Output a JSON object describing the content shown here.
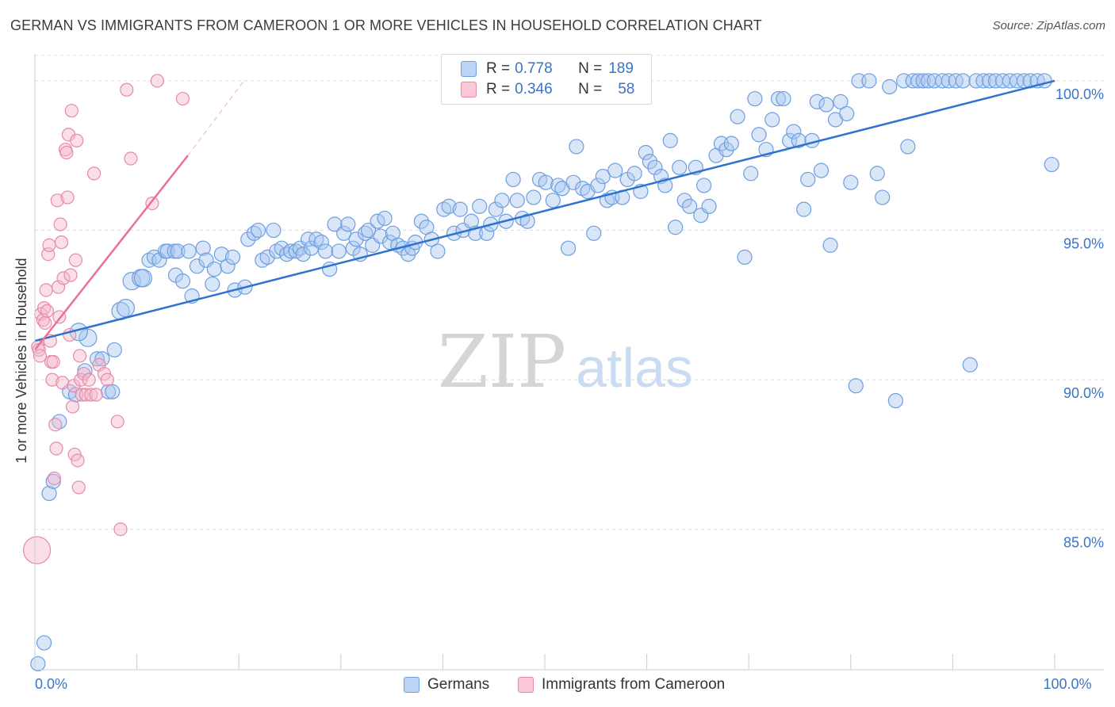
{
  "header": {
    "title": "GERMAN VS IMMIGRANTS FROM CAMEROON 1 OR MORE VEHICLES IN HOUSEHOLD CORRELATION CHART",
    "source": "Source: ZipAtlas.com"
  },
  "watermark": {
    "zip": "ZIP",
    "atlas": "atlas"
  },
  "legend": {
    "rows": [
      {
        "r_label": "R =",
        "r_value": "0.778",
        "n_label": "N =",
        "n_value": "189",
        "color": "#a9c8f0",
        "stroke": "#6e9ee0"
      },
      {
        "r_label": "R =",
        "r_value": "0.346",
        "n_label": "N =",
        "n_value": "58",
        "color": "#f7b9cc",
        "stroke": "#e58aa8"
      }
    ]
  },
  "bottom_legend": {
    "items": [
      {
        "label": "Germans",
        "color": "#a9c8f0",
        "stroke": "#6e9ee0"
      },
      {
        "label": "Immigrants from Cameroon",
        "color": "#f7b9cc",
        "stroke": "#e58aa8"
      }
    ]
  },
  "chart_data": {
    "type": "scatter",
    "title": "GERMAN VS IMMIGRANTS FROM CAMEROON 1 OR MORE VEHICLES IN HOUSEHOLD CORRELATION CHART",
    "xlabel": "",
    "ylabel": "1 or more Vehicles in Household",
    "xlim": [
      0,
      100
    ],
    "ylim": [
      80.3,
      100.9
    ],
    "x_tick_labels": [
      {
        "value": 0,
        "label": "0.0%"
      },
      {
        "value": 100,
        "label": "100.0%"
      }
    ],
    "y_tick_labels": [
      {
        "value": 85,
        "label": "85.0%"
      },
      {
        "value": 90,
        "label": "90.0%"
      },
      {
        "value": 95,
        "label": "95.0%"
      },
      {
        "value": 100,
        "label": "100.0%"
      }
    ],
    "grid": true,
    "legend_position": "top-center",
    "series": [
      {
        "name": "Germans",
        "color": "#6e9ee0",
        "fill": "#a9c8f0",
        "trend_color": "#2f72cf",
        "trendline": [
          [
            0,
            91.3
          ],
          [
            100,
            100.0
          ]
        ],
        "points": [
          [
            0.3,
            80.5
          ],
          [
            0.9,
            81.2
          ],
          [
            1.4,
            86.2
          ],
          [
            1.8,
            86.6
          ],
          [
            2.4,
            88.6
          ],
          [
            3.4,
            89.6
          ],
          [
            4.0,
            89.5
          ],
          [
            4.9,
            90.3
          ],
          [
            6.1,
            90.7
          ],
          [
            6.6,
            90.7
          ],
          [
            7.2,
            89.6
          ],
          [
            7.6,
            89.6
          ],
          [
            7.8,
            91.0
          ],
          [
            5.2,
            91.4
          ],
          [
            4.3,
            91.6
          ],
          [
            8.4,
            92.3
          ],
          [
            8.9,
            92.4
          ],
          [
            9.5,
            93.3
          ],
          [
            10.4,
            93.4
          ],
          [
            10.6,
            93.4
          ],
          [
            11.2,
            94.0
          ],
          [
            11.7,
            94.1
          ],
          [
            12.2,
            94.0
          ],
          [
            12.8,
            94.3
          ],
          [
            13.0,
            94.3
          ],
          [
            13.7,
            94.3
          ],
          [
            14.0,
            94.3
          ],
          [
            13.8,
            93.5
          ],
          [
            14.5,
            93.3
          ],
          [
            15.1,
            94.3
          ],
          [
            15.4,
            92.8
          ],
          [
            15.9,
            93.8
          ],
          [
            16.5,
            94.4
          ],
          [
            16.8,
            94.0
          ],
          [
            17.4,
            93.2
          ],
          [
            17.6,
            93.7
          ],
          [
            18.3,
            94.2
          ],
          [
            18.9,
            93.8
          ],
          [
            19.4,
            94.1
          ],
          [
            19.6,
            93.0
          ],
          [
            20.6,
            93.1
          ],
          [
            20.9,
            94.7
          ],
          [
            21.5,
            94.9
          ],
          [
            21.9,
            95.0
          ],
          [
            22.3,
            94.0
          ],
          [
            22.8,
            94.1
          ],
          [
            23.4,
            95.0
          ],
          [
            23.7,
            94.3
          ],
          [
            24.2,
            94.4
          ],
          [
            24.7,
            94.2
          ],
          [
            25.1,
            94.3
          ],
          [
            25.6,
            94.3
          ],
          [
            26.0,
            94.4
          ],
          [
            26.3,
            94.2
          ],
          [
            26.8,
            94.7
          ],
          [
            27.1,
            94.4
          ],
          [
            27.6,
            94.7
          ],
          [
            28.1,
            94.6
          ],
          [
            28.5,
            94.3
          ],
          [
            28.9,
            93.7
          ],
          [
            29.4,
            95.2
          ],
          [
            29.8,
            94.3
          ],
          [
            30.3,
            94.9
          ],
          [
            30.7,
            95.2
          ],
          [
            31.2,
            94.4
          ],
          [
            31.5,
            94.7
          ],
          [
            31.9,
            94.2
          ],
          [
            32.4,
            94.9
          ],
          [
            32.7,
            95.0
          ],
          [
            33.1,
            94.5
          ],
          [
            33.6,
            95.3
          ],
          [
            33.9,
            94.8
          ],
          [
            34.3,
            95.4
          ],
          [
            34.8,
            94.6
          ],
          [
            35.1,
            94.9
          ],
          [
            35.6,
            94.5
          ],
          [
            36.1,
            94.4
          ],
          [
            36.6,
            94.2
          ],
          [
            37.0,
            94.4
          ],
          [
            37.3,
            94.6
          ],
          [
            37.9,
            95.3
          ],
          [
            38.4,
            95.1
          ],
          [
            38.9,
            94.7
          ],
          [
            39.5,
            94.3
          ],
          [
            40.1,
            95.7
          ],
          [
            40.6,
            95.8
          ],
          [
            41.1,
            94.9
          ],
          [
            41.7,
            95.7
          ],
          [
            42.0,
            95.0
          ],
          [
            42.8,
            95.3
          ],
          [
            43.2,
            94.9
          ],
          [
            43.6,
            95.8
          ],
          [
            44.3,
            94.9
          ],
          [
            44.7,
            95.2
          ],
          [
            45.2,
            95.7
          ],
          [
            45.8,
            96.0
          ],
          [
            46.2,
            95.3
          ],
          [
            46.9,
            96.7
          ],
          [
            47.3,
            96.0
          ],
          [
            47.8,
            95.4
          ],
          [
            48.3,
            95.3
          ],
          [
            48.9,
            96.1
          ],
          [
            49.5,
            96.7
          ],
          [
            50.1,
            96.6
          ],
          [
            50.8,
            96.0
          ],
          [
            51.3,
            96.5
          ],
          [
            51.7,
            96.4
          ],
          [
            52.3,
            94.4
          ],
          [
            52.8,
            96.6
          ],
          [
            53.1,
            97.8
          ],
          [
            53.7,
            96.4
          ],
          [
            54.2,
            96.3
          ],
          [
            54.8,
            94.9
          ],
          [
            55.2,
            96.5
          ],
          [
            55.7,
            96.8
          ],
          [
            56.1,
            96.0
          ],
          [
            56.6,
            96.1
          ],
          [
            56.9,
            97.0
          ],
          [
            57.6,
            96.1
          ],
          [
            58.1,
            96.7
          ],
          [
            58.8,
            96.9
          ],
          [
            59.4,
            96.3
          ],
          [
            59.9,
            97.6
          ],
          [
            60.3,
            97.3
          ],
          [
            60.8,
            97.1
          ],
          [
            61.4,
            96.8
          ],
          [
            61.8,
            96.5
          ],
          [
            62.3,
            98.0
          ],
          [
            62.8,
            95.1
          ],
          [
            63.2,
            97.1
          ],
          [
            63.7,
            96.0
          ],
          [
            64.2,
            95.8
          ],
          [
            64.8,
            97.1
          ],
          [
            65.3,
            95.5
          ],
          [
            65.6,
            96.5
          ],
          [
            66.1,
            95.8
          ],
          [
            66.8,
            97.5
          ],
          [
            67.3,
            97.9
          ],
          [
            67.8,
            97.7
          ],
          [
            68.3,
            97.9
          ],
          [
            68.9,
            98.8
          ],
          [
            69.6,
            94.1
          ],
          [
            70.2,
            96.9
          ],
          [
            70.6,
            99.4
          ],
          [
            71.0,
            98.2
          ],
          [
            71.7,
            97.7
          ],
          [
            72.3,
            98.7
          ],
          [
            72.9,
            99.4
          ],
          [
            73.4,
            99.4
          ],
          [
            74.0,
            98.0
          ],
          [
            74.4,
            98.3
          ],
          [
            74.9,
            98.0
          ],
          [
            75.4,
            95.7
          ],
          [
            75.8,
            96.7
          ],
          [
            76.2,
            98.0
          ],
          [
            76.7,
            99.3
          ],
          [
            77.1,
            97.0
          ],
          [
            77.6,
            99.2
          ],
          [
            78.0,
            94.5
          ],
          [
            78.5,
            98.7
          ],
          [
            79.0,
            99.3
          ],
          [
            79.6,
            98.9
          ],
          [
            80.0,
            96.6
          ],
          [
            80.5,
            89.8
          ],
          [
            80.8,
            100.0
          ],
          [
            81.8,
            100.0
          ],
          [
            82.6,
            96.9
          ],
          [
            83.1,
            96.1
          ],
          [
            83.8,
            99.8
          ],
          [
            84.4,
            89.3
          ],
          [
            85.2,
            100.0
          ],
          [
            85.6,
            97.8
          ],
          [
            86.1,
            100.0
          ],
          [
            86.6,
            100.0
          ],
          [
            87.1,
            100.0
          ],
          [
            87.6,
            100.0
          ],
          [
            88.2,
            100.0
          ],
          [
            89.0,
            100.0
          ],
          [
            89.6,
            100.0
          ],
          [
            90.3,
            100.0
          ],
          [
            91.0,
            100.0
          ],
          [
            91.7,
            90.5
          ],
          [
            92.3,
            100.0
          ],
          [
            93.0,
            100.0
          ],
          [
            93.6,
            100.0
          ],
          [
            94.2,
            100.0
          ],
          [
            94.9,
            100.0
          ],
          [
            95.6,
            100.0
          ],
          [
            96.3,
            100.0
          ],
          [
            97.0,
            100.0
          ],
          [
            97.6,
            100.0
          ],
          [
            98.3,
            100.0
          ],
          [
            99.0,
            100.0
          ],
          [
            99.7,
            97.2
          ]
        ]
      },
      {
        "name": "Immigrants from Cameroon",
        "color": "#e58aa8",
        "fill": "#f7b9cc",
        "trend_color": "#e8709a",
        "trendline": [
          [
            0,
            91.0
          ],
          [
            15,
            97.5
          ]
        ],
        "trend_dashed": [
          [
            15,
            97.5
          ],
          [
            20.5,
            100.0
          ]
        ],
        "points": [
          [
            0.2,
            84.3
          ],
          [
            0.3,
            91.1
          ],
          [
            0.4,
            91.0
          ],
          [
            0.5,
            90.8
          ],
          [
            0.6,
            92.2
          ],
          [
            0.8,
            92.0
          ],
          [
            0.9,
            92.4
          ],
          [
            1.0,
            91.9
          ],
          [
            1.1,
            93.0
          ],
          [
            1.2,
            92.3
          ],
          [
            1.3,
            94.2
          ],
          [
            1.4,
            94.5
          ],
          [
            1.5,
            91.3
          ],
          [
            1.6,
            90.6
          ],
          [
            1.7,
            90.0
          ],
          [
            1.8,
            90.6
          ],
          [
            1.9,
            86.7
          ],
          [
            2.0,
            88.5
          ],
          [
            2.1,
            87.7
          ],
          [
            2.2,
            96.0
          ],
          [
            2.3,
            93.1
          ],
          [
            2.4,
            92.1
          ],
          [
            2.5,
            95.2
          ],
          [
            2.6,
            94.6
          ],
          [
            2.7,
            89.9
          ],
          [
            2.8,
            93.4
          ],
          [
            3.0,
            97.7
          ],
          [
            3.1,
            97.6
          ],
          [
            3.2,
            96.1
          ],
          [
            3.3,
            98.2
          ],
          [
            3.4,
            91.5
          ],
          [
            3.5,
            93.5
          ],
          [
            3.6,
            99.0
          ],
          [
            3.7,
            89.1
          ],
          [
            3.8,
            89.8
          ],
          [
            3.9,
            87.5
          ],
          [
            4.0,
            94.0
          ],
          [
            4.1,
            98.0
          ],
          [
            4.2,
            87.3
          ],
          [
            4.3,
            86.4
          ],
          [
            4.4,
            90.8
          ],
          [
            4.5,
            90.0
          ],
          [
            4.6,
            89.5
          ],
          [
            4.8,
            90.2
          ],
          [
            5.0,
            89.5
          ],
          [
            5.5,
            89.5
          ],
          [
            6.0,
            89.5
          ],
          [
            5.8,
            96.9
          ],
          [
            5.3,
            90.0
          ],
          [
            6.3,
            90.5
          ],
          [
            6.8,
            90.2
          ],
          [
            7.1,
            90.0
          ],
          [
            8.1,
            88.6
          ],
          [
            8.4,
            85.0
          ],
          [
            9.0,
            99.7
          ],
          [
            9.4,
            97.4
          ],
          [
            11.5,
            95.9
          ],
          [
            12.0,
            100.0
          ],
          [
            14.5,
            99.4
          ]
        ]
      }
    ]
  }
}
